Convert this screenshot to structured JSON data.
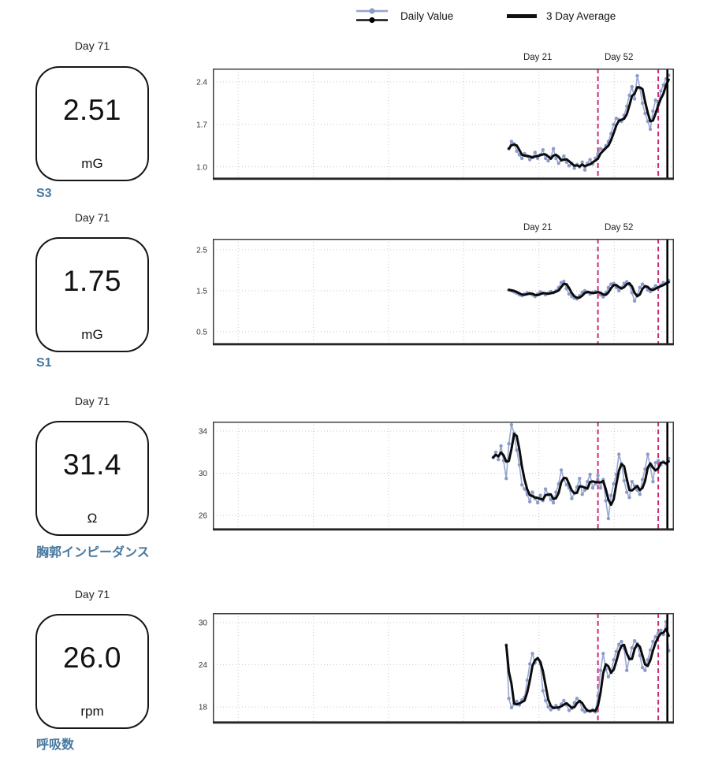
{
  "legend": {
    "daily": {
      "label": "Daily Value",
      "line_color": "#96a5cf",
      "dot_color": "#8b9cc9",
      "secondary_line_color": "#111111"
    },
    "average": {
      "label": "3 Day Average",
      "line_color": "#111111"
    }
  },
  "colors": {
    "event_line": "#d02a75",
    "today_line": "#000000",
    "metric_label": "#47789f",
    "daily_line": "#98a7d2",
    "daily_dot": "#8b9bca",
    "avg_line": "#0b0b0b",
    "grid": "#c9c9c9",
    "border": "#3f3f3f"
  },
  "rows": [
    {
      "day_label": "Day 71",
      "value": "2.51",
      "unit": "mG",
      "metric": "S3"
    },
    {
      "day_label": "Day 71",
      "value": "1.75",
      "unit": "mG",
      "metric": "S1"
    },
    {
      "day_label": "Day 71",
      "value": "31.4",
      "unit": "Ω",
      "metric": "胸郭インピーダンス"
    },
    {
      "day_label": "Day 71",
      "value": "26.0",
      "unit": "rpm",
      "metric": "呼吸数"
    }
  ],
  "chart_data": [
    {
      "type": "line",
      "title": "S3",
      "unit": "mG",
      "series_names": [
        "Daily Value",
        "3 Day Average"
      ],
      "avg_window": 3,
      "x_domain_days": [
        -103,
        73
      ],
      "ylim": [
        0.79,
        2.62
      ],
      "yticks": [
        {
          "v": 1.0,
          "label": "1.0"
        },
        {
          "v": 1.7,
          "label": "1.7"
        },
        {
          "v": 2.4,
          "label": "2.4"
        }
      ],
      "days_start": 10,
      "daily": [
        1.3,
        1.42,
        1.38,
        1.26,
        1.2,
        1.14,
        1.22,
        1.18,
        1.12,
        1.16,
        1.24,
        1.14,
        1.2,
        1.28,
        1.14,
        1.1,
        1.16,
        1.3,
        1.14,
        1.06,
        1.12,
        1.18,
        1.08,
        1.02,
        1.06,
        0.98,
        1.04,
        1.0,
        1.08,
        0.95,
        1.06,
        1.12,
        1.05,
        1.14,
        1.22,
        1.3,
        1.28,
        1.35,
        1.42,
        1.55,
        1.7,
        1.8,
        1.78,
        1.75,
        1.85,
        2.0,
        2.18,
        2.32,
        2.12,
        2.5,
        2.3,
        2.05,
        1.88,
        1.75,
        1.62,
        1.92,
        2.1,
        2.02,
        2.25,
        2.35,
        2.45,
        2.51
      ],
      "event_lines_days": [
        44,
        67
      ],
      "event_labels": [
        {
          "text": "Day 21",
          "day": 21
        },
        {
          "text": "Day 52",
          "day": 52
        }
      ],
      "today_marker_day": 70.5
    },
    {
      "type": "line",
      "title": "S1",
      "unit": "mG",
      "series_names": [
        "Daily Value",
        "3 Day Average"
      ],
      "avg_window": 3,
      "x_domain_days": [
        -103,
        73
      ],
      "ylim": [
        0.17,
        2.77
      ],
      "yticks": [
        {
          "v": 0.5,
          "label": "0.5"
        },
        {
          "v": 1.5,
          "label": "1.5"
        },
        {
          "v": 2.5,
          "label": "2.5"
        }
      ],
      "days_start": 10,
      "daily": [
        1.52,
        1.5,
        1.47,
        1.44,
        1.4,
        1.38,
        1.42,
        1.45,
        1.43,
        1.4,
        1.36,
        1.42,
        1.47,
        1.44,
        1.4,
        1.44,
        1.48,
        1.45,
        1.5,
        1.58,
        1.7,
        1.73,
        1.55,
        1.42,
        1.36,
        1.32,
        1.3,
        1.38,
        1.46,
        1.5,
        1.46,
        1.42,
        1.45,
        1.48,
        1.47,
        1.4,
        1.35,
        1.45,
        1.58,
        1.66,
        1.68,
        1.58,
        1.5,
        1.58,
        1.68,
        1.72,
        1.65,
        1.45,
        1.25,
        1.4,
        1.58,
        1.66,
        1.6,
        1.52,
        1.48,
        1.55,
        1.62,
        1.58,
        1.64,
        1.7,
        1.68,
        1.75
      ],
      "event_lines_days": [
        44,
        67
      ],
      "event_labels": [
        {
          "text": "Day 21",
          "day": 21
        },
        {
          "text": "Day 52",
          "day": 52
        }
      ],
      "today_marker_day": 70.5
    },
    {
      "type": "line",
      "title": "胸郭インピーダンス",
      "unit": "Ω",
      "series_names": [
        "Daily Value",
        "3 Day Average"
      ],
      "avg_window": 3,
      "x_domain_days": [
        -103,
        73
      ],
      "ylim": [
        24.58,
        34.9
      ],
      "yticks": [
        {
          "v": 26,
          "label": "26"
        },
        {
          "v": 30,
          "label": "30"
        },
        {
          "v": 34,
          "label": "34"
        }
      ],
      "days_start": 4,
      "daily": [
        31.5,
        32.0,
        31.3,
        32.6,
        31.2,
        29.5,
        32.8,
        34.6,
        33.8,
        32.2,
        30.8,
        28.9,
        28.5,
        28.0,
        27.3,
        28.2,
        27.6,
        27.2,
        27.9,
        27.4,
        28.5,
        28.0,
        27.5,
        27.2,
        28.2,
        29.0,
        30.3,
        29.4,
        28.9,
        28.6,
        27.6,
        28.1,
        28.7,
        29.5,
        28.0,
        28.4,
        29.2,
        29.9,
        28.6,
        29.0,
        29.8,
        28.6,
        29.4,
        27.4,
        25.7,
        27.9,
        29.0,
        29.9,
        31.8,
        30.9,
        29.3,
        28.2,
        27.7,
        29.2,
        28.8,
        28.4,
        28.0,
        29.4,
        30.4,
        31.8,
        30.6,
        29.2,
        31.0,
        31.2,
        30.8,
        31.1,
        30.9,
        31.4
      ],
      "event_lines_days": [
        44,
        67
      ],
      "event_labels": [],
      "today_marker_day": 70.5
    },
    {
      "type": "line",
      "title": "呼吸数",
      "unit": "rpm",
      "series_names": [
        "Daily Value",
        "3 Day Average"
      ],
      "avg_window": 3,
      "x_domain_days": [
        -103,
        73
      ],
      "ylim": [
        15.65,
        31.35
      ],
      "yticks": [
        {
          "v": 18,
          "label": "18"
        },
        {
          "v": 24,
          "label": "24"
        },
        {
          "v": 30,
          "label": "30"
        }
      ],
      "days_start": 9,
      "daily": [
        26.8,
        19.2,
        17.9,
        18.4,
        18.8,
        18.3,
        19.0,
        19.4,
        21.8,
        24.1,
        25.6,
        24.3,
        24.9,
        24.1,
        20.3,
        18.9,
        18.0,
        17.6,
        17.9,
        18.2,
        17.7,
        18.4,
        18.9,
        18.3,
        17.5,
        17.8,
        18.6,
        19.2,
        18.8,
        17.6,
        17.3,
        17.5,
        17.4,
        17.6,
        17.3,
        19.6,
        23.2,
        25.6,
        23.4,
        22.3,
        22.9,
        24.7,
        25.9,
        26.9,
        27.3,
        26.3,
        23.2,
        24.9,
        26.4,
        27.4,
        27.0,
        25.3,
        23.6,
        23.2,
        24.7,
        26.1,
        27.3,
        28.0,
        28.5,
        28.9,
        28.3,
        30.1,
        26.0
      ],
      "event_lines_days": [
        44,
        67
      ],
      "event_labels": [],
      "today_marker_day": 70.5
    }
  ]
}
